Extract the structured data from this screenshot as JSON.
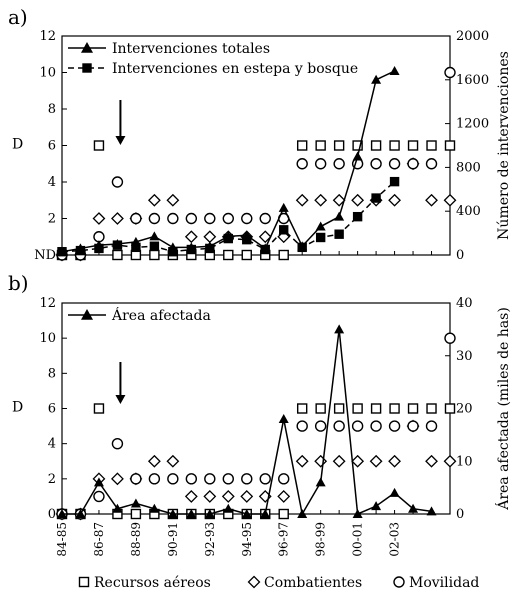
{
  "chart_data": [
    {
      "type": "line",
      "panel_label": "a)",
      "x_tick_labels": [],
      "y_left": {
        "label": "D",
        "ticks": [
          "ND",
          "2",
          "4",
          "6",
          "8",
          "10",
          "12"
        ],
        "range": [
          0,
          12
        ]
      },
      "y_right": {
        "label": "Número de intervenciones",
        "ticks": [
          "0",
          "400",
          "800",
          "1200",
          "1600",
          "2000"
        ],
        "range": [
          0,
          2000
        ]
      },
      "legend": {
        "position": "top-left",
        "entries": [
          "Intervenciones totales",
          "Intervenciones en estepa y bosque"
        ]
      },
      "series": [
        {
          "name": "Intervenciones totales",
          "axis": "right",
          "marker": "triangle",
          "style": "solid",
          "points": [
            [
              0,
              30
            ],
            [
              1,
              60
            ],
            [
              2,
              90
            ],
            [
              3,
              100
            ],
            [
              4,
              120
            ],
            [
              5,
              170
            ],
            [
              6,
              70
            ],
            [
              7,
              70
            ],
            [
              8,
              80
            ],
            [
              9,
              170
            ],
            [
              10,
              180
            ],
            [
              11,
              60
            ],
            [
              12,
              430
            ],
            [
              13,
              80
            ],
            [
              14,
              260
            ],
            [
              15,
              350
            ],
            [
              16,
              900
            ],
            [
              17,
              1600
            ],
            [
              18,
              1680
            ]
          ]
        },
        {
          "name": "Intervenciones en estepa y bosque",
          "axis": "right",
          "marker": "square",
          "style": "dashed",
          "points": [
            [
              0,
              30
            ],
            [
              1,
              40
            ],
            [
              2,
              60
            ],
            [
              3,
              90
            ],
            [
              4,
              70
            ],
            [
              5,
              80
            ],
            [
              6,
              30
            ],
            [
              7,
              50
            ],
            [
              8,
              60
            ],
            [
              9,
              150
            ],
            [
              10,
              140
            ],
            [
              11,
              50
            ],
            [
              12,
              230
            ],
            [
              13,
              70
            ],
            [
              14,
              160
            ],
            [
              15,
              190
            ],
            [
              16,
              350
            ],
            [
              17,
              520
            ],
            [
              18,
              670
            ]
          ]
        }
      ],
      "scatter": [
        {
          "name": "Recursos aéreos",
          "marker": "open-square",
          "axis": "left",
          "points": [
            [
              0,
              0
            ],
            [
              1,
              0
            ],
            [
              2,
              6
            ],
            [
              3,
              0
            ],
            [
              4,
              0
            ],
            [
              5,
              0
            ],
            [
              6,
              0
            ],
            [
              7,
              0
            ],
            [
              8,
              0
            ],
            [
              9,
              0
            ],
            [
              10,
              0
            ],
            [
              11,
              0
            ],
            [
              12,
              0
            ],
            [
              13,
              6
            ],
            [
              14,
              6
            ],
            [
              15,
              6
            ],
            [
              16,
              6
            ],
            [
              17,
              6
            ],
            [
              18,
              6
            ],
            [
              19,
              6
            ],
            [
              20,
              6
            ],
            [
              21,
              6
            ]
          ]
        },
        {
          "name": "Combatientes",
          "marker": "open-diamond",
          "axis": "left",
          "points": [
            [
              0,
              0
            ],
            [
              1,
              0
            ],
            [
              2,
              2
            ],
            [
              3,
              2
            ],
            [
              4,
              2
            ],
            [
              5,
              3
            ],
            [
              6,
              3
            ],
            [
              7,
              1
            ],
            [
              8,
              1
            ],
            [
              9,
              1
            ],
            [
              10,
              1
            ],
            [
              11,
              1
            ],
            [
              12,
              1
            ],
            [
              13,
              3
            ],
            [
              14,
              3
            ],
            [
              15,
              3
            ],
            [
              16,
              3
            ],
            [
              17,
              3
            ],
            [
              18,
              3
            ],
            [
              19,
              5
            ],
            [
              20,
              3
            ],
            [
              21,
              3
            ]
          ]
        },
        {
          "name": "Movilidad",
          "marker": "open-circle",
          "axis": "left",
          "points": [
            [
              0,
              0
            ],
            [
              1,
              0
            ],
            [
              2,
              1
            ],
            [
              3,
              4
            ],
            [
              4,
              2
            ],
            [
              5,
              2
            ],
            [
              6,
              2
            ],
            [
              7,
              2
            ],
            [
              8,
              2
            ],
            [
              9,
              2
            ],
            [
              10,
              2
            ],
            [
              11,
              2
            ],
            [
              12,
              2
            ],
            [
              13,
              5
            ],
            [
              14,
              5
            ],
            [
              15,
              5
            ],
            [
              16,
              5
            ],
            [
              17,
              5
            ],
            [
              18,
              5
            ],
            [
              19,
              5
            ],
            [
              20,
              5
            ],
            [
              21,
              10
            ]
          ]
        }
      ]
    },
    {
      "type": "line",
      "panel_label": "b)",
      "x_tick_labels": [
        "84-85",
        "86-87",
        "88-89",
        "90-91",
        "92-93",
        "94-95",
        "96-97",
        "98-99",
        "00-01",
        "02-03"
      ],
      "y_left": {
        "label": "D",
        "ticks": [
          "0",
          "2",
          "4",
          "6",
          "8",
          "10",
          "12"
        ],
        "range": [
          0,
          12
        ]
      },
      "y_right": {
        "label": "Área afectada (miles de has)",
        "ticks": [
          "0",
          "10",
          "20",
          "30",
          "40"
        ],
        "range": [
          0,
          40
        ]
      },
      "legend": {
        "position": "top-left",
        "entries": [
          "Área afectada"
        ]
      },
      "series": [
        {
          "name": "Área afectada",
          "axis": "right",
          "marker": "triangle",
          "style": "solid",
          "points": [
            [
              0,
              0
            ],
            [
              1,
              0
            ],
            [
              2,
              6
            ],
            [
              3,
              1
            ],
            [
              4,
              2
            ],
            [
              5,
              1
            ],
            [
              6,
              0
            ],
            [
              7,
              0
            ],
            [
              8,
              0
            ],
            [
              9,
              1
            ],
            [
              10,
              0
            ],
            [
              11,
              0
            ],
            [
              12,
              18
            ],
            [
              13,
              0
            ],
            [
              14,
              6
            ],
            [
              15,
              35
            ],
            [
              16,
              0
            ],
            [
              17,
              1.5
            ],
            [
              18,
              4
            ],
            [
              19,
              1
            ],
            [
              20,
              0.5
            ]
          ]
        }
      ],
      "scatter": [
        {
          "name": "Recursos aéreos",
          "marker": "open-square",
          "axis": "left",
          "points": [
            [
              0,
              0
            ],
            [
              1,
              0
            ],
            [
              2,
              6
            ],
            [
              3,
              0
            ],
            [
              4,
              0
            ],
            [
              5,
              0
            ],
            [
              6,
              0
            ],
            [
              7,
              0
            ],
            [
              8,
              0
            ],
            [
              9,
              0
            ],
            [
              10,
              0
            ],
            [
              11,
              0
            ],
            [
              12,
              0
            ],
            [
              13,
              6
            ],
            [
              14,
              6
            ],
            [
              15,
              6
            ],
            [
              16,
              6
            ],
            [
              17,
              6
            ],
            [
              18,
              6
            ],
            [
              19,
              6
            ],
            [
              20,
              6
            ],
            [
              21,
              6
            ]
          ]
        },
        {
          "name": "Combatientes",
          "marker": "open-diamond",
          "axis": "left",
          "points": [
            [
              0,
              0
            ],
            [
              1,
              0
            ],
            [
              2,
              2
            ],
            [
              3,
              2
            ],
            [
              4,
              2
            ],
            [
              5,
              3
            ],
            [
              6,
              3
            ],
            [
              7,
              1
            ],
            [
              8,
              1
            ],
            [
              9,
              1
            ],
            [
              10,
              1
            ],
            [
              11,
              1
            ],
            [
              12,
              1
            ],
            [
              13,
              3
            ],
            [
              14,
              3
            ],
            [
              15,
              3
            ],
            [
              16,
              3
            ],
            [
              17,
              3
            ],
            [
              18,
              3
            ],
            [
              19,
              5
            ],
            [
              20,
              3
            ],
            [
              21,
              3
            ]
          ]
        },
        {
          "name": "Movilidad",
          "marker": "open-circle",
          "axis": "left",
          "points": [
            [
              0,
              0
            ],
            [
              1,
              0
            ],
            [
              2,
              1
            ],
            [
              3,
              4
            ],
            [
              4,
              2
            ],
            [
              5,
              2
            ],
            [
              6,
              2
            ],
            [
              7,
              2
            ],
            [
              8,
              2
            ],
            [
              9,
              2
            ],
            [
              10,
              2
            ],
            [
              11,
              2
            ],
            [
              12,
              2
            ],
            [
              13,
              5
            ],
            [
              14,
              5
            ],
            [
              15,
              5
            ],
            [
              16,
              5
            ],
            [
              17,
              5
            ],
            [
              18,
              5
            ],
            [
              19,
              5
            ],
            [
              20,
              5
            ],
            [
              21,
              10
            ]
          ]
        }
      ]
    }
  ],
  "bottom_legend": [
    "Recursos aéreos",
    "Combatientes",
    "Movilidad"
  ]
}
